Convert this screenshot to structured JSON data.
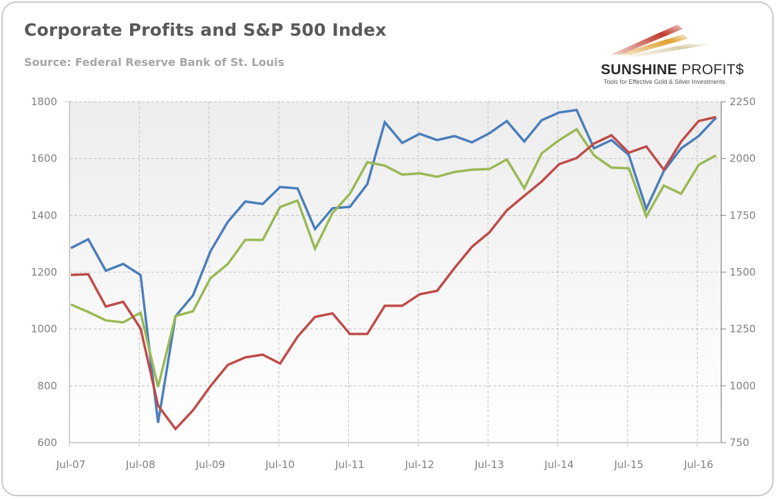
{
  "header": {
    "title": "Corporate Profits and S&P 500 Index",
    "subtitle": "Source: Federal Reserve Bank of St. Louis"
  },
  "logo": {
    "name_bold": "SUNSHINE",
    "name_light": "PROFIT$",
    "tagline": "Tools for Effective Gold & Silver Investments"
  },
  "colors": {
    "blue": "#4a7ebb",
    "red": "#be4b48",
    "green": "#98b954",
    "grid": "#bfbfbf",
    "axis_text": "#808080"
  },
  "chart_data": {
    "type": "line",
    "title": "Corporate Profits and S&P 500 Index",
    "subtitle": "Source: Federal Reserve Bank of St. Louis",
    "xlabel": "",
    "ylabel_left": "",
    "ylabel_right": "",
    "x_tick_labels": [
      "Jul-07",
      "Jul-08",
      "Jul-09",
      "Jul-10",
      "Jul-11",
      "Jul-12",
      "Jul-13",
      "Jul-14",
      "Jul-15",
      "Jul-16"
    ],
    "x_frequency": "quarterly",
    "x_start": "Jul-07",
    "x_end": "Oct-16",
    "ylim_left": [
      600,
      1800
    ],
    "yticks_left": [
      600,
      800,
      1000,
      1200,
      1400,
      1600,
      1800
    ],
    "ylim_right": [
      750,
      2250
    ],
    "yticks_right": [
      750,
      1000,
      1250,
      1500,
      1750,
      2000,
      2250
    ],
    "grid": true,
    "legend": "none",
    "series": [
      {
        "name": "blue series",
        "color": "#4a7ebb",
        "axis": "left",
        "values": [
          1285,
          1316,
          1205,
          1229,
          1190,
          670,
          1045,
          1118,
          1273,
          1377,
          1449,
          1440,
          1500,
          1495,
          1352,
          1425,
          1430,
          1510,
          1728,
          1655,
          1687,
          1665,
          1679,
          1657,
          1689,
          1732,
          1660,
          1735,
          1762,
          1771,
          1636,
          1665,
          1612,
          1423,
          1556,
          1636,
          1679,
          1744
        ]
      },
      {
        "name": "red series",
        "color": "#be4b48",
        "axis": "right",
        "values": [
          1488,
          1491,
          1349,
          1370,
          1252,
          913,
          810,
          892,
          998,
          1092,
          1125,
          1137,
          1098,
          1216,
          1303,
          1319,
          1228,
          1228,
          1352,
          1352,
          1403,
          1418,
          1518,
          1612,
          1675,
          1772,
          1836,
          1899,
          1975,
          2002,
          2066,
          2102,
          2026,
          2053,
          1951,
          2075,
          2165,
          2183
        ]
      },
      {
        "name": "green series",
        "color": "#98b954",
        "axis": "right",
        "values": [
          1358,
          1325,
          1288,
          1279,
          1322,
          995,
          1307,
          1328,
          1473,
          1536,
          1642,
          1642,
          1787,
          1815,
          1603,
          1760,
          1845,
          1984,
          1969,
          1929,
          1935,
          1920,
          1941,
          1951,
          1954,
          1996,
          1869,
          2023,
          2081,
          2129,
          2014,
          1960,
          1957,
          1745,
          1881,
          1845,
          1972,
          2014
        ]
      }
    ]
  }
}
